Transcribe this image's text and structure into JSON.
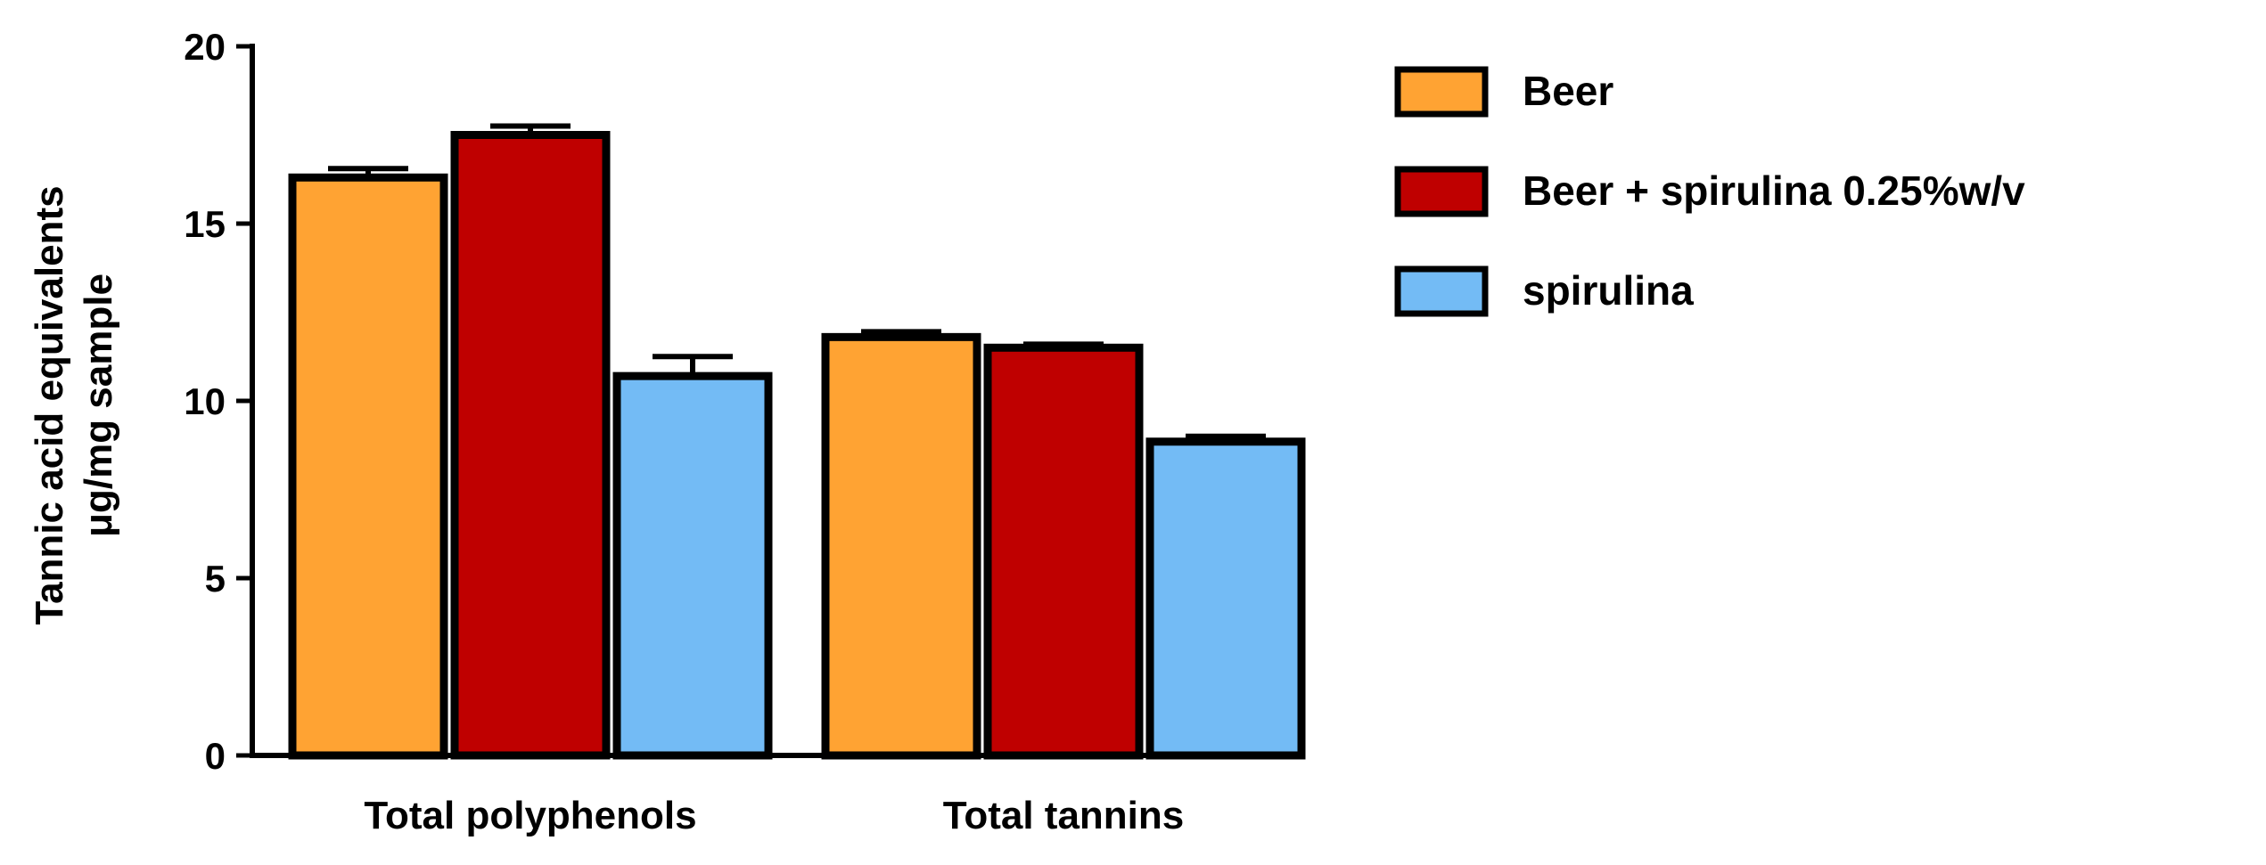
{
  "chart_data": {
    "type": "bar",
    "title": "",
    "xlabel": "",
    "ylabel": [
      "Tannic acid equivalents",
      "μg/mg sample"
    ],
    "categories": [
      "Total polyphenols",
      "Total tannins"
    ],
    "series": [
      {
        "name": "Beer",
        "values": [
          16.3,
          11.8
        ],
        "errors": [
          0.25,
          0.15
        ],
        "color": "#ffa333"
      },
      {
        "name": "Beer + spirulina 0.25%w/v",
        "values": [
          17.5,
          11.5
        ],
        "errors": [
          0.25,
          0.1
        ],
        "color": "#bf0000"
      },
      {
        "name": "spirulina",
        "values": [
          10.7,
          8.85
        ],
        "errors": [
          0.55,
          0.15
        ],
        "color": "#73bbf5"
      }
    ],
    "ylim": [
      0,
      20
    ],
    "yticks": [
      0,
      5,
      10,
      15,
      20
    ],
    "grid": false,
    "legend_position": "top-right, outside plot"
  }
}
